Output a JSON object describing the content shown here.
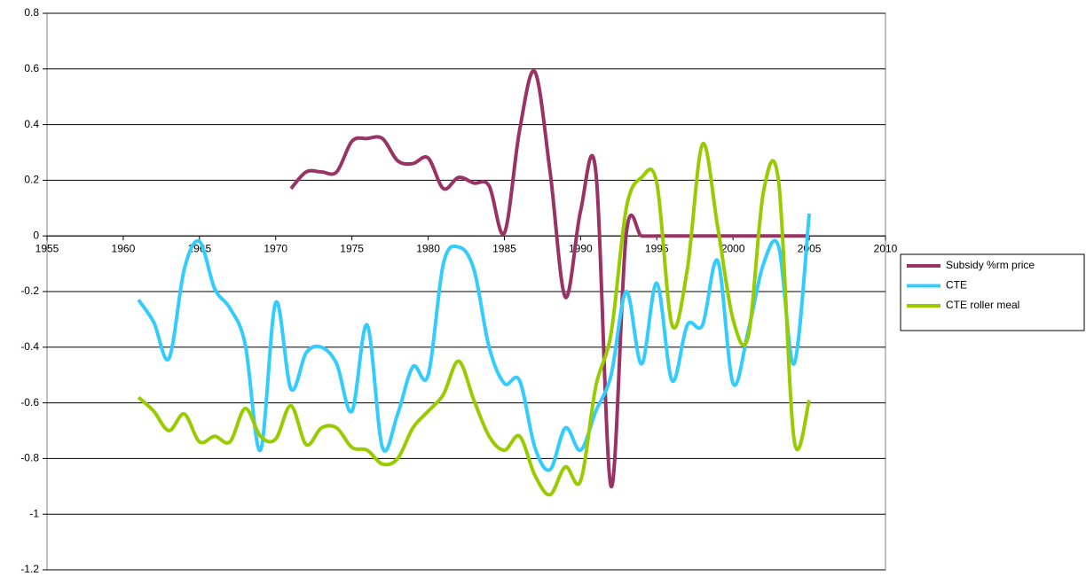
{
  "chart_data": {
    "type": "line",
    "x": [
      1961,
      1962,
      1963,
      1964,
      1965,
      1966,
      1967,
      1968,
      1969,
      1970,
      1971,
      1972,
      1973,
      1974,
      1975,
      1976,
      1977,
      1978,
      1979,
      1980,
      1981,
      1982,
      1983,
      1984,
      1985,
      1986,
      1987,
      1988,
      1989,
      1990,
      1991,
      1992,
      1993,
      1994,
      1995,
      1996,
      1997,
      1998,
      1999,
      2000,
      2001,
      2002,
      2003,
      2004,
      2005
    ],
    "series": [
      {
        "name": "Subsidy %rm price",
        "color": "#993366",
        "values": [
          null,
          null,
          null,
          null,
          null,
          null,
          null,
          null,
          null,
          null,
          0.17,
          0.23,
          0.23,
          0.23,
          0.34,
          0.35,
          0.35,
          0.27,
          0.26,
          0.28,
          0.17,
          0.21,
          0.19,
          0.18,
          0.01,
          0.38,
          0.59,
          0.23,
          -0.22,
          0.09,
          0.23,
          -0.9,
          0.01,
          0,
          0,
          0,
          0,
          0,
          0,
          0,
          0,
          0,
          0,
          0,
          0
        ]
      },
      {
        "name": "CTE",
        "color": "#33CCFF",
        "values": [
          -0.23,
          -0.31,
          -0.44,
          -0.12,
          -0.02,
          -0.19,
          -0.26,
          -0.39,
          -0.77,
          -0.24,
          -0.55,
          -0.42,
          -0.4,
          -0.46,
          -0.63,
          -0.32,
          -0.76,
          -0.64,
          -0.47,
          -0.5,
          -0.1,
          -0.04,
          -0.12,
          -0.4,
          -0.53,
          -0.52,
          -0.76,
          -0.84,
          -0.69,
          -0.77,
          -0.63,
          -0.5,
          -0.2,
          -0.46,
          -0.17,
          -0.52,
          -0.32,
          -0.32,
          -0.09,
          -0.53,
          -0.34,
          -0.1,
          -0.04,
          -0.46,
          0.08
        ]
      },
      {
        "name": "CTE roller meal",
        "color": "#99CC00",
        "values": [
          -0.58,
          -0.63,
          -0.7,
          -0.64,
          -0.74,
          -0.72,
          -0.74,
          -0.62,
          -0.72,
          -0.73,
          -0.61,
          -0.75,
          -0.69,
          -0.69,
          -0.76,
          -0.77,
          -0.82,
          -0.8,
          -0.69,
          -0.63,
          -0.57,
          -0.45,
          -0.59,
          -0.72,
          -0.77,
          -0.72,
          -0.86,
          -0.93,
          -0.83,
          -0.88,
          -0.54,
          -0.35,
          0.1,
          0.21,
          0.19,
          -0.32,
          -0.12,
          0.33,
          0.03,
          -0.3,
          -0.36,
          0.16,
          0.19,
          -0.73,
          -0.59
        ]
      }
    ],
    "xlim": [
      1955,
      2010
    ],
    "xticks": [
      1955,
      1960,
      1965,
      1970,
      1975,
      1980,
      1985,
      1990,
      1995,
      2000,
      2005,
      2010
    ],
    "ylim": [
      -1.2,
      0.8
    ],
    "yticks": [
      -1.2,
      -1,
      -0.8,
      -0.6,
      -0.4,
      -0.2,
      0,
      0.2,
      0.4,
      0.6,
      0.8
    ],
    "grid": true,
    "legend": "right"
  }
}
